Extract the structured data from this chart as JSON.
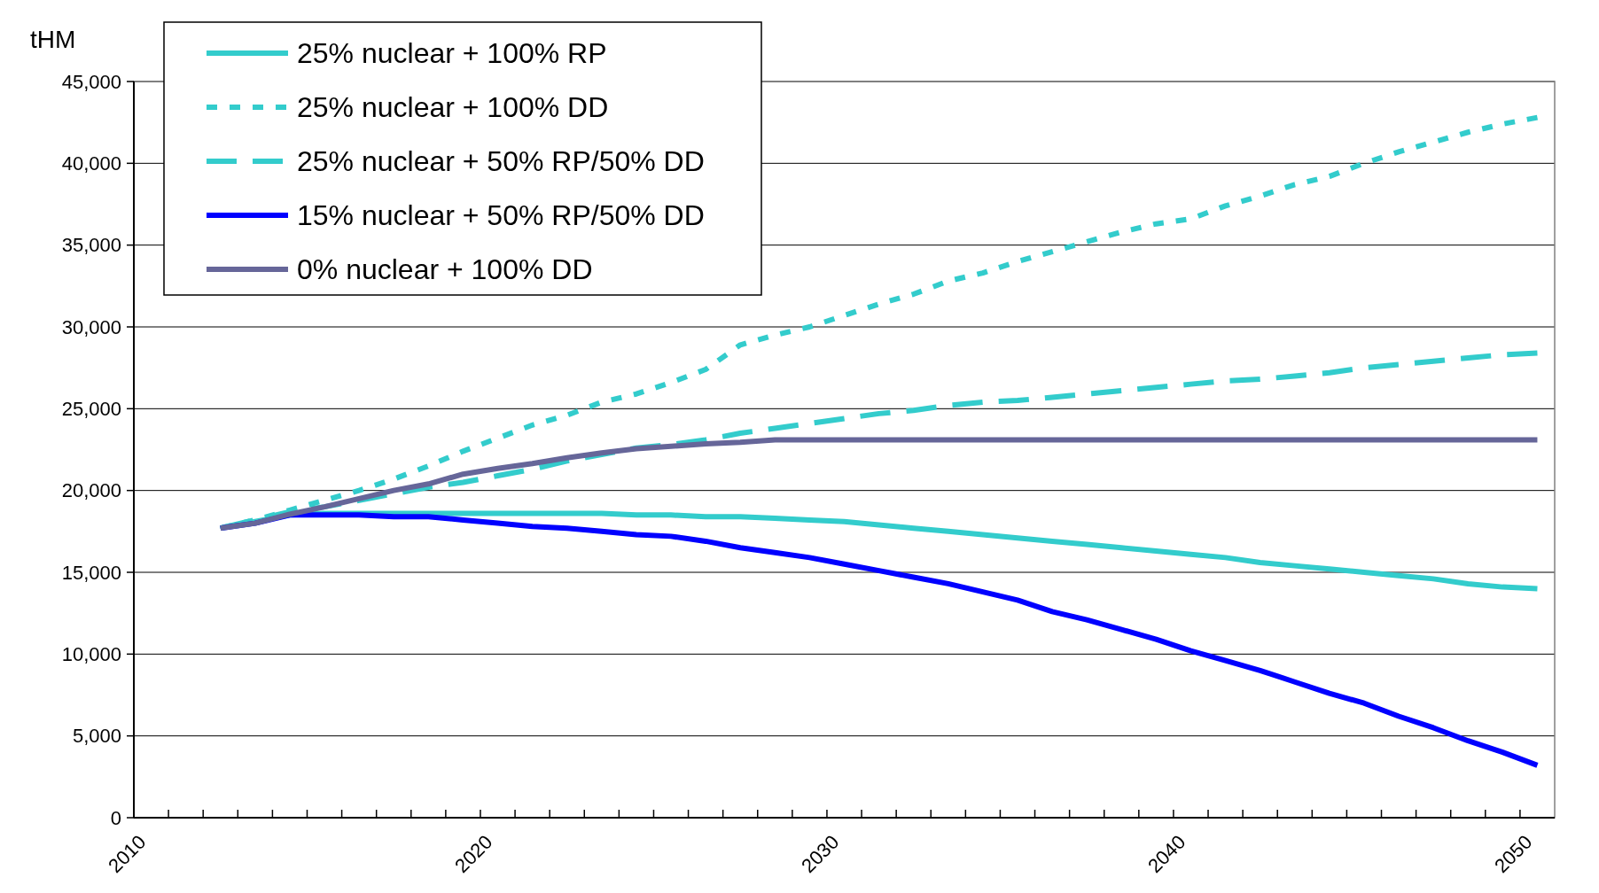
{
  "chart_data": {
    "type": "line",
    "ylabel": "tHM",
    "legend": "top left",
    "grid": "y",
    "x": [
      2012.5,
      2013.5,
      2014.5,
      2015.5,
      2016.5,
      2017.5,
      2018.5,
      2019.5,
      2020.5,
      2021.5,
      2022.5,
      2023.5,
      2024.5,
      2025.5,
      2026.5,
      2027.5,
      2028.5,
      2029.5,
      2030.5,
      2031.5,
      2032.5,
      2033.5,
      2034.5,
      2035.5,
      2036.5,
      2037.5,
      2038.5,
      2039.5,
      2040.5,
      2041.5,
      2042.5,
      2043.5,
      2044.5,
      2045.5,
      2046.5,
      2047.5,
      2048.5,
      2049.5,
      2050.5
    ],
    "xlim": [
      2010,
      2051
    ],
    "xticks": [
      2010,
      {
        "value": 2011,
        "label": null
      },
      {
        "value": 2012,
        "label": null
      },
      {
        "value": 2013,
        "label": null
      },
      {
        "value": 2014,
        "label": null
      },
      {
        "value": 2015,
        "label": null
      },
      {
        "value": 2016,
        "label": null
      },
      {
        "value": 2017,
        "label": null
      },
      {
        "value": 2018,
        "label": null
      },
      {
        "value": 2019,
        "label": null
      },
      2020,
      {
        "value": 2021,
        "label": null
      },
      {
        "value": 2022,
        "label": null
      },
      {
        "value": 2023,
        "label": null
      },
      {
        "value": 2024,
        "label": null
      },
      {
        "value": 2025,
        "label": null
      },
      {
        "value": 2026,
        "label": null
      },
      {
        "value": 2027,
        "label": null
      },
      {
        "value": 2028,
        "label": null
      },
      {
        "value": 2029,
        "label": null
      },
      2030,
      {
        "value": 2031,
        "label": null
      },
      {
        "value": 2032,
        "label": null
      },
      {
        "value": 2033,
        "label": null
      },
      {
        "value": 2034,
        "label": null
      },
      {
        "value": 2035,
        "label": null
      },
      {
        "value": 2036,
        "label": null
      },
      {
        "value": 2037,
        "label": null
      },
      {
        "value": 2038,
        "label": null
      },
      {
        "value": 2039,
        "label": null
      },
      2040,
      {
        "value": 2041,
        "label": null
      },
      {
        "value": 2042,
        "label": null
      },
      {
        "value": 2043,
        "label": null
      },
      {
        "value": 2044,
        "label": null
      },
      {
        "value": 2045,
        "label": null
      },
      {
        "value": 2046,
        "label": null
      },
      {
        "value": 2047,
        "label": null
      },
      {
        "value": 2048,
        "label": null
      },
      {
        "value": 2049,
        "label": null
      },
      2050
    ],
    "ylim": [
      0,
      45000
    ],
    "yticks": [
      {
        "value": 0,
        "label": "0"
      },
      {
        "value": 5000,
        "label": "5,000"
      },
      {
        "value": 10000,
        "label": "10,000"
      },
      {
        "value": 15000,
        "label": "15,000"
      },
      {
        "value": 20000,
        "label": "20,000"
      },
      {
        "value": 25000,
        "label": "25,000"
      },
      {
        "value": 30000,
        "label": "30,000"
      },
      {
        "value": 35000,
        "label": "35,000"
      },
      {
        "value": 40000,
        "label": "40,000"
      },
      {
        "value": 45000,
        "label": "45,000"
      }
    ],
    "series": [
      {
        "name": "25% nuclear + 100% RP",
        "color": "#33cccc",
        "line_style": "solid",
        "values": [
          17700,
          18100,
          18500,
          18600,
          18600,
          18600,
          18600,
          18600,
          18600,
          18600,
          18600,
          18600,
          18500,
          18500,
          18400,
          18400,
          18300,
          18200,
          18100,
          17900,
          17700,
          17500,
          17300,
          17100,
          16900,
          16700,
          16500,
          16300,
          16100,
          15900,
          15600,
          15400,
          15200,
          15000,
          14800,
          14600,
          14300,
          14100,
          14000
        ]
      },
      {
        "name": "25% nuclear + 100% DD",
        "color": "#33cccc",
        "line_style": "dotted",
        "values": [
          17700,
          18200,
          18800,
          19400,
          20000,
          20700,
          21500,
          22400,
          23200,
          24000,
          24600,
          25400,
          25900,
          26600,
          27400,
          28900,
          29500,
          30000,
          30700,
          31400,
          32000,
          32800,
          33300,
          34000,
          34600,
          35200,
          35800,
          36300,
          36600,
          37400,
          38000,
          38700,
          39200,
          40000,
          40700,
          41300,
          41900,
          42400,
          42800
        ]
      },
      {
        "name": "25% nuclear + 50% RP/50% DD",
        "color": "#33cccc",
        "line_style": "dashed",
        "values": [
          17700,
          18200,
          18700,
          19000,
          19400,
          19800,
          20200,
          20500,
          20900,
          21300,
          21800,
          22200,
          22600,
          22800,
          23100,
          23500,
          23800,
          24100,
          24400,
          24700,
          24900,
          25200,
          25400,
          25500,
          25700,
          25900,
          26100,
          26300,
          26500,
          26700,
          26800,
          27000,
          27200,
          27500,
          27700,
          27900,
          28100,
          28300,
          28400
        ]
      },
      {
        "name": "15% nuclear + 50% RP/50% DD",
        "color": "#0000ff",
        "line_style": "solid",
        "values": [
          17700,
          18000,
          18500,
          18500,
          18500,
          18400,
          18400,
          18200,
          18000,
          17800,
          17700,
          17500,
          17300,
          17200,
          16900,
          16500,
          16200,
          15900,
          15500,
          15100,
          14700,
          14300,
          13800,
          13300,
          12600,
          12100,
          11500,
          10900,
          10200,
          9600,
          9000,
          8300,
          7600,
          7000,
          6200,
          5500,
          4700,
          4000,
          3200
        ]
      },
      {
        "name": "0% nuclear + 100% DD",
        "color": "#666699",
        "line_style": "solid",
        "values": [
          17700,
          18000,
          18550,
          19000,
          19500,
          20000,
          20400,
          21000,
          21350,
          21650,
          22000,
          22300,
          22550,
          22700,
          22850,
          22950,
          23100,
          23100,
          23100,
          23100,
          23100,
          23100,
          23100,
          23100,
          23100,
          23100,
          23100,
          23100,
          23100,
          23100,
          23100,
          23100,
          23100,
          23100,
          23100,
          23100,
          23100,
          23100,
          23100
        ]
      }
    ]
  }
}
